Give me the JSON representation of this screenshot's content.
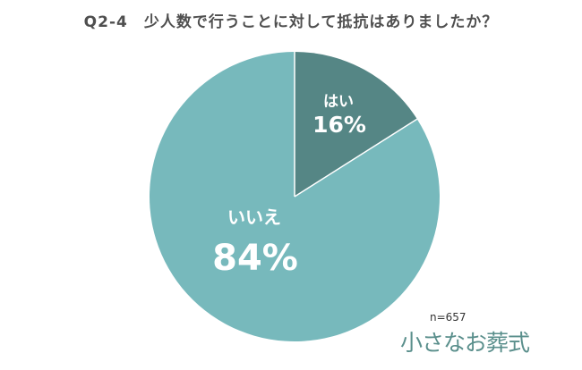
{
  "title": "Q2-4　少人数で行うことに対して抵抗はありましたか？",
  "sample_size": "n=657",
  "logo_text": "小さなお葬式",
  "colors": {
    "slice_yes": "#558685",
    "slice_no": "#77b9bc",
    "label_text": "#ffffff",
    "title_text": "#4f4f4f",
    "logo": "#5a8f8c"
  },
  "chart_data": {
    "type": "pie",
    "title": "Q2-4　少人数で行うことに対して抵抗はありましたか？",
    "slices": [
      {
        "label": "はい",
        "value": 16,
        "value_label": "16%"
      },
      {
        "label": "いいえ",
        "value": 84,
        "value_label": "84%"
      }
    ],
    "start_angle": "12 o'clock",
    "direction": "clockwise",
    "legend": "none"
  }
}
